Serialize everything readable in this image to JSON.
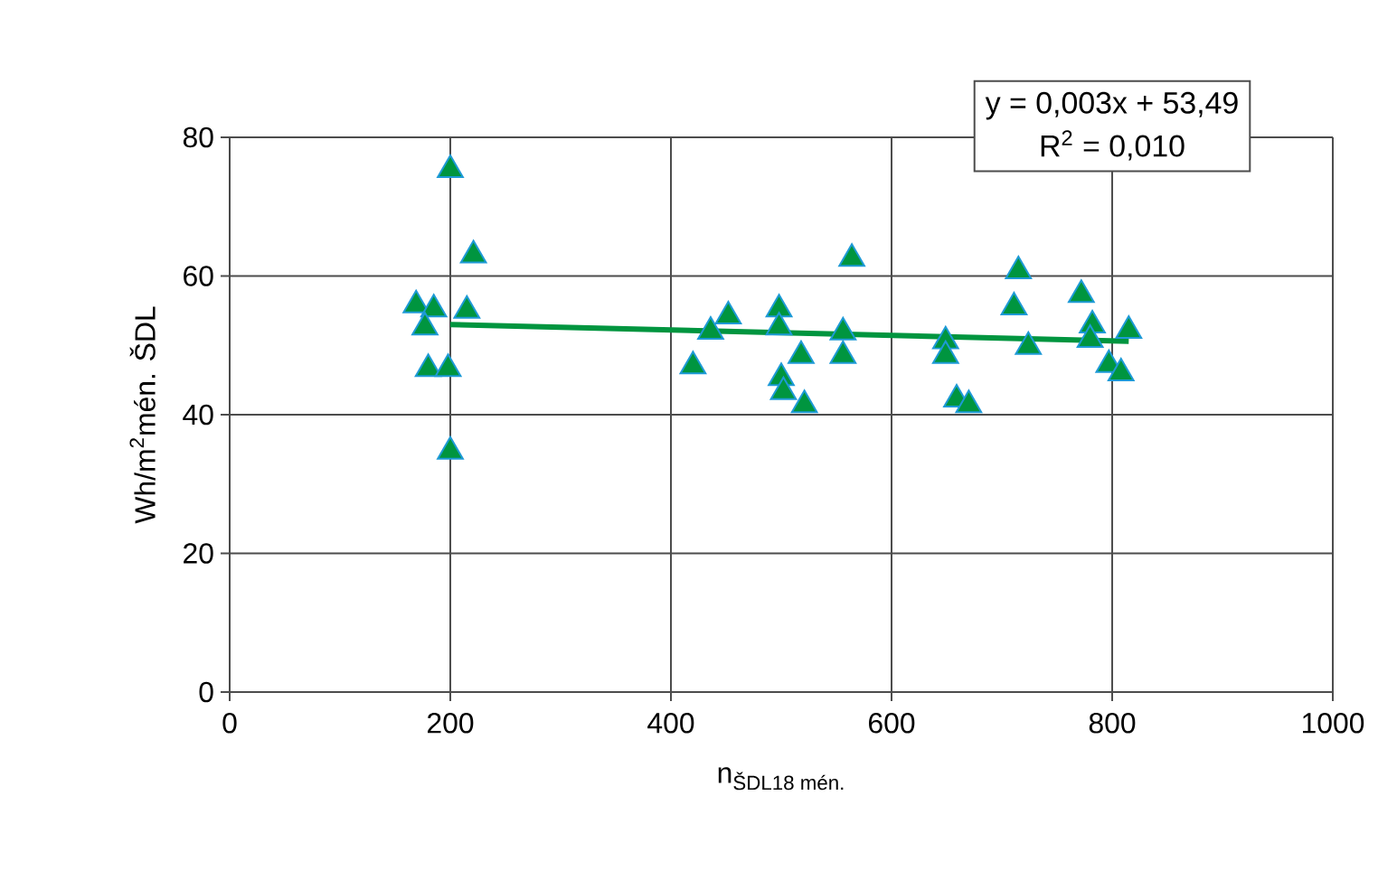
{
  "chart_data": {
    "type": "scatter",
    "xlabel": "\\text{n}_{\\text{ŠDL18 mén.}}",
    "ylabel": "Wh/m$^{2}$mén. ŠDL",
    "annotations": [
      "y = 0,003x + 53,49",
      "R$^{2}$ = 0,010"
    ],
    "xlim": [
      0,
      1000
    ],
    "xticks": [
      0,
      200,
      400,
      600,
      800,
      1000
    ],
    "ylim": [
      0,
      80
    ],
    "yticks": [
      0,
      20,
      40,
      60,
      80
    ],
    "grid": true,
    "legend": false,
    "marker": "triangle",
    "series": [
      {
        "color": "#00953f",
        "x": [
          200,
          221,
          169,
          185,
          215,
          177,
          180,
          198,
          200,
          564,
          452,
          498,
          498,
          436,
          420,
          518,
          556,
          556,
          500,
          502,
          521,
          649,
          649,
          659,
          670,
          715,
          711,
          724,
          772,
          782,
          780,
          797,
          815,
          808
        ],
        "values": [
          75.3,
          63.0,
          55.8,
          55.2,
          55.0,
          52.6,
          46.6,
          46.6,
          34.7,
          62.5,
          54.2,
          55.2,
          52.6,
          52.0,
          47.0,
          48.5,
          51.9,
          48.5,
          45.3,
          43.3,
          41.4,
          50.6,
          48.5,
          42.2,
          41.4,
          60.7,
          55.5,
          49.8,
          57.3,
          52.9,
          50.8,
          47.2,
          52.1,
          46.0
        ]
      },
      {
        "type": "line",
        "color": "#00953f",
        "marker": "none",
        "x": [
          200,
          815
        ],
        "values": [
          53.0,
          50.6
        ]
      }
    ]
  }
}
